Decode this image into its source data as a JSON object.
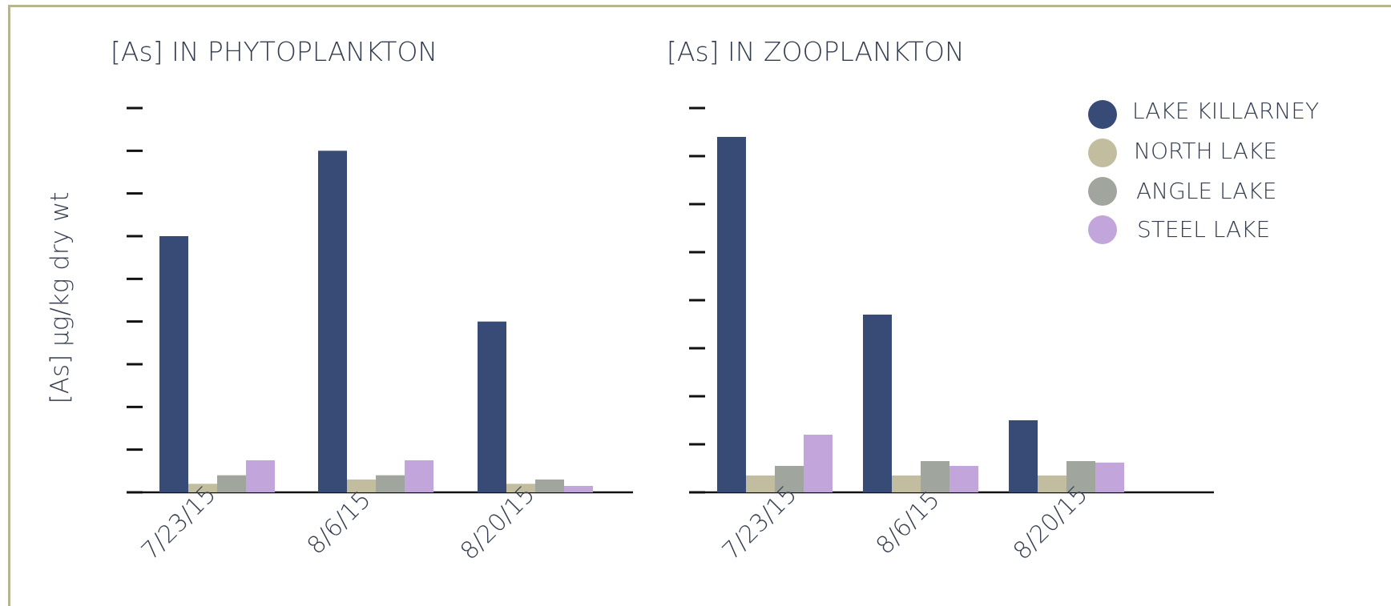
{
  "chart_data": [
    {
      "type": "bar",
      "title": "[As] IN PHYTOPLANKTON",
      "ylabel": "[As] µg/kg dry wt",
      "categories": [
        "7/23/15",
        "8/6/15",
        "8/20/15"
      ],
      "ylim": [
        0,
        9
      ],
      "series": [
        {
          "name": "LAKE KILLARNEY",
          "values": [
            6.0,
            8.0,
            4.0
          ]
        },
        {
          "name": "NORTH LAKE",
          "values": [
            0.2,
            0.3,
            0.2
          ]
        },
        {
          "name": "ANGLE LAKE",
          "values": [
            0.4,
            0.4,
            0.3
          ]
        },
        {
          "name": "STEEL LAKE",
          "values": [
            0.75,
            0.75,
            0.15
          ]
        }
      ]
    },
    {
      "type": "bar",
      "title": "[As] IN ZOOPLANKTON",
      "categories": [
        "7/23/15",
        "8/6/15",
        "8/20/15"
      ],
      "ylim": [
        0,
        8
      ],
      "series": [
        {
          "name": "LAKE KILLARNEY",
          "values": [
            7.4,
            3.7,
            1.5
          ]
        },
        {
          "name": "NORTH LAKE",
          "values": [
            0.35,
            0.35,
            0.35
          ]
        },
        {
          "name": "ANGLE LAKE",
          "values": [
            0.55,
            0.65,
            0.65
          ]
        },
        {
          "name": "STEEL LAKE",
          "values": [
            1.2,
            0.55,
            0.62
          ]
        }
      ]
    }
  ],
  "legend": {
    "position": "top-right",
    "items": [
      {
        "label": "LAKE KILLARNEY",
        "color": "#384a76"
      },
      {
        "label": "NORTH LAKE",
        "color": "#c2bd9e"
      },
      {
        "label": "ANGLE LAKE",
        "color": "#a0a69d"
      },
      {
        "label": "STEEL LAKE",
        "color": "#c2a6db"
      }
    ]
  }
}
